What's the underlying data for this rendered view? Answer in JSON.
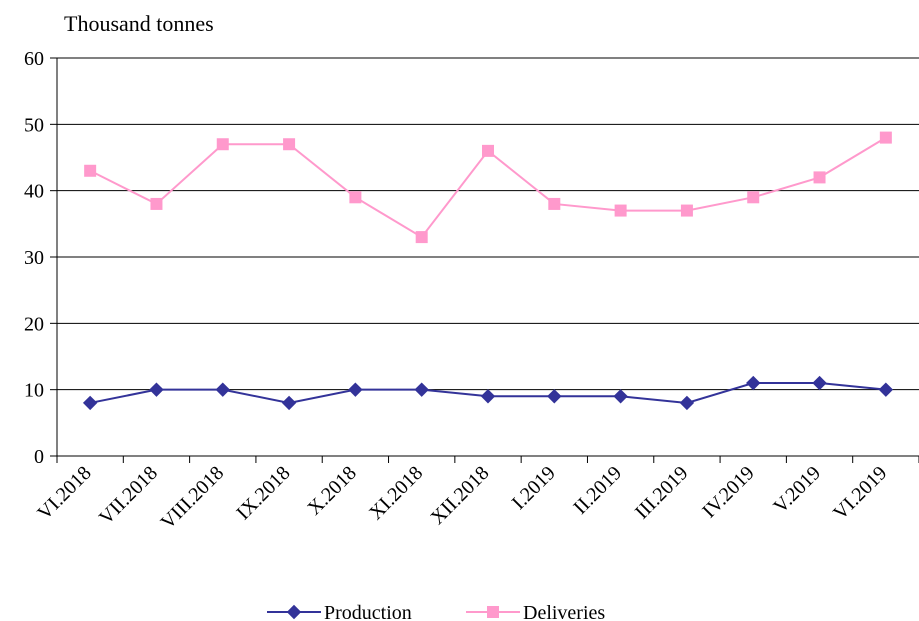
{
  "chart_data": {
    "type": "line",
    "title": "",
    "ylabel": "Thousand tonnes",
    "xlabel": "",
    "categories": [
      "VI.2018",
      "VII.2018",
      "VIII.2018",
      "IX.2018",
      "X.2018",
      "XI.2018",
      "XII.2018",
      "I.2019",
      "II.2019",
      "III.2019",
      "IV.2019",
      "V.2019",
      "VI.2019"
    ],
    "series": [
      {
        "name": "Production",
        "color": "#333399",
        "marker": "diamond",
        "values": [
          8,
          10,
          10,
          8,
          10,
          10,
          9,
          9,
          9,
          8,
          11,
          11,
          10
        ]
      },
      {
        "name": "Deliveries",
        "color": "#FF99CC",
        "marker": "square",
        "values": [
          43,
          38,
          47,
          47,
          39,
          33,
          46,
          38,
          37,
          37,
          39,
          42,
          48
        ]
      }
    ],
    "ylim": [
      0,
      60
    ],
    "yticks": [
      0,
      10,
      20,
      30,
      40,
      50,
      60
    ],
    "grid": true,
    "legend": "bottom"
  }
}
